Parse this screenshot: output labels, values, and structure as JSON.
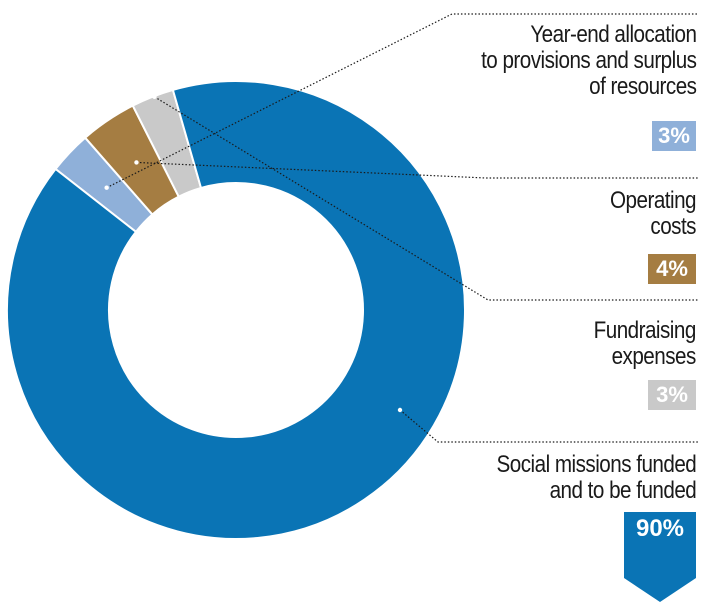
{
  "chart_data": {
    "type": "donut",
    "slices": [
      {
        "label": "Social missions funded and to be funded",
        "label_lines": [
          "Social missions funded",
          "and to be funded"
        ],
        "value": 90,
        "value_label": "90%",
        "color": "#0a74b5"
      },
      {
        "label": "Year-end allocation to provisions and surplus of resources",
        "label_lines": [
          "Year-end allocation",
          "to provisions and surplus",
          "of resources"
        ],
        "value": 3,
        "value_label": "3%",
        "color": "#8fb0d9"
      },
      {
        "label": "Operating costs",
        "label_lines": [
          "Operating",
          "costs"
        ],
        "value": 4,
        "value_label": "4%",
        "color": "#a57d42"
      },
      {
        "label": "Fundraising expenses",
        "label_lines": [
          "Fundraising",
          "expenses"
        ],
        "value": 3,
        "value_label": "3%",
        "color": "#c9c9c9"
      }
    ]
  }
}
